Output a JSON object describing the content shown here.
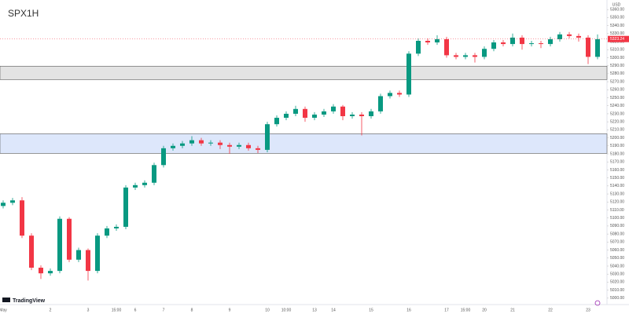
{
  "chart_data": {
    "type": "candlestick",
    "title": "SPX1H",
    "currency": "USD",
    "brand": "TradingView",
    "up_color": "#089981",
    "down_color": "#f23645",
    "last_price": 5323.24,
    "zones": [
      {
        "from": 5272.7,
        "to": 5289.4,
        "color": "#e3e3e3"
      },
      {
        "from": 5180.6,
        "to": 5205,
        "color": "#dde7fb"
      }
    ],
    "categories": [
      "May",
      null,
      null,
      null,
      null,
      "2",
      null,
      null,
      null,
      "3",
      null,
      null,
      "15:00",
      null,
      "6",
      null,
      null,
      "7",
      null,
      null,
      "8",
      null,
      null,
      null,
      "9",
      null,
      null,
      null,
      "10",
      null,
      "10:00",
      null,
      null,
      "13",
      null,
      "14",
      null,
      null,
      null,
      "15",
      null,
      null,
      null,
      "16",
      null,
      null,
      null,
      "17",
      null,
      "15:00",
      null,
      "20",
      null,
      null,
      "21",
      null,
      null,
      null,
      "22",
      null,
      null,
      null,
      "23",
      null
    ],
    "open": [
      5115,
      5119,
      5122,
      5078,
      5038,
      5031,
      5034,
      5099,
      5048,
      5060,
      5034,
      5078,
      5087,
      5089,
      5138,
      5141,
      5144,
      5166,
      5187,
      5190,
      5193,
      5197,
      5193,
      5194,
      5191,
      5189,
      5191,
      5187,
      5185,
      5217,
      5225,
      5230,
      5236,
      5225,
      5229,
      5233,
      5239,
      5227,
      5229,
      5227,
      5233,
      5252,
      5256,
      5254,
      5305,
      5321,
      5319,
      5323,
      5303,
      5301,
      5303,
      5301,
      5311,
      5319,
      5317,
      5325,
      5317,
      5318,
      5317,
      5323,
      5329,
      5327,
      5325,
      5301
    ],
    "high": [
      5122,
      5125,
      5126,
      5081,
      5041,
      5037,
      5102,
      5101,
      5063,
      5062,
      5081,
      5090,
      5092,
      5141,
      5144,
      5147,
      5169,
      5190,
      5193,
      5196,
      5202,
      5200,
      5197,
      5197,
      5194,
      5194,
      5194,
      5190,
      5220,
      5228,
      5233,
      5240,
      5239,
      5232,
      5236,
      5242,
      5241,
      5232,
      5232,
      5236,
      5255,
      5259,
      5259,
      5308,
      5324,
      5324,
      5328,
      5326,
      5306,
      5306,
      5306,
      5314,
      5322,
      5322,
      5330,
      5328,
      5321,
      5321,
      5326,
      5332,
      5332,
      5330,
      5328,
      5329
    ],
    "low": [
      5112,
      5116,
      5075,
      5035,
      5024,
      5028,
      5031,
      5045,
      5045,
      5022,
      5031,
      5075,
      5084,
      5086,
      5135,
      5138,
      5141,
      5163,
      5184,
      5187,
      5190,
      5190,
      5190,
      5186,
      5180,
      5186,
      5184,
      5181,
      5182,
      5214,
      5222,
      5227,
      5220,
      5222,
      5226,
      5230,
      5222,
      5224,
      5203,
      5224,
      5230,
      5249,
      5251,
      5251,
      5302,
      5316,
      5316,
      5300,
      5298,
      5298,
      5294,
      5298,
      5308,
      5314,
      5314,
      5310,
      5314,
      5312,
      5314,
      5320,
      5324,
      5320,
      5292,
      5298
    ],
    "close": [
      5119,
      5122,
      5078,
      5038,
      5031,
      5034,
      5099,
      5048,
      5060,
      5034,
      5078,
      5087,
      5089,
      5138,
      5141,
      5144,
      5166,
      5187,
      5190,
      5193,
      5197,
      5193,
      5194,
      5191,
      5189,
      5191,
      5187,
      5185,
      5217,
      5225,
      5230,
      5236,
      5225,
      5229,
      5233,
      5239,
      5227,
      5229,
      5227,
      5233,
      5252,
      5256,
      5254,
      5305,
      5321,
      5319,
      5323,
      5303,
      5301,
      5303,
      5301,
      5311,
      5319,
      5317,
      5325,
      5317,
      5318,
      5317,
      5323,
      5329,
      5327,
      5325,
      5301,
      5323
    ],
    "ylim": [
      4992,
      5368
    ],
    "yticks": [
      {
        "value": 5000,
        "label": "5000.00"
      },
      {
        "value": 5010,
        "label": "5010.00"
      },
      {
        "value": 5020,
        "label": "5020.00"
      },
      {
        "value": 5030,
        "label": "5030.00"
      },
      {
        "value": 5040,
        "label": "5040.00"
      },
      {
        "value": 5050,
        "label": "5050.00"
      },
      {
        "value": 5060,
        "label": "5060.00"
      },
      {
        "value": 5070,
        "label": "5070.00"
      },
      {
        "value": 5080,
        "label": "5080.00"
      },
      {
        "value": 5090,
        "label": "5090.00"
      },
      {
        "value": 5100,
        "label": "5100.00"
      },
      {
        "value": 5110,
        "label": "5110.00"
      },
      {
        "value": 5120,
        "label": "5120.00"
      },
      {
        "value": 5130,
        "label": "5130.00"
      },
      {
        "value": 5140,
        "label": "5140.00"
      },
      {
        "value": 5150,
        "label": "5150.00"
      },
      {
        "value": 5160,
        "label": "5160.00"
      },
      {
        "value": 5170,
        "label": "5170.00"
      },
      {
        "value": 5180,
        "label": "5180.00"
      },
      {
        "value": 5190,
        "label": "5190.00"
      },
      {
        "value": 5200,
        "label": "5200.00"
      },
      {
        "value": 5210,
        "label": "5210.00"
      },
      {
        "value": 5220,
        "label": "5220.00"
      },
      {
        "value": 5230,
        "label": "5230.00"
      },
      {
        "value": 5240,
        "label": "5240.00"
      },
      {
        "value": 5250,
        "label": "5250.00"
      },
      {
        "value": 5260,
        "label": "5260.00"
      },
      {
        "value": 5270,
        "label": "5270.00"
      },
      {
        "value": 5280,
        "label": "5280.00"
      },
      {
        "value": 5290,
        "label": "5290.00"
      },
      {
        "value": 5300,
        "label": "5300.00"
      },
      {
        "value": 5310,
        "label": "5310.00"
      },
      {
        "value": 5320,
        "label": "5320.00"
      },
      {
        "value": 5330,
        "label": "5330.00"
      },
      {
        "value": 5340,
        "label": "5340.00"
      },
      {
        "value": 5350,
        "label": "5350.00"
      },
      {
        "value": 5360,
        "label": "5360.00"
      }
    ]
  }
}
